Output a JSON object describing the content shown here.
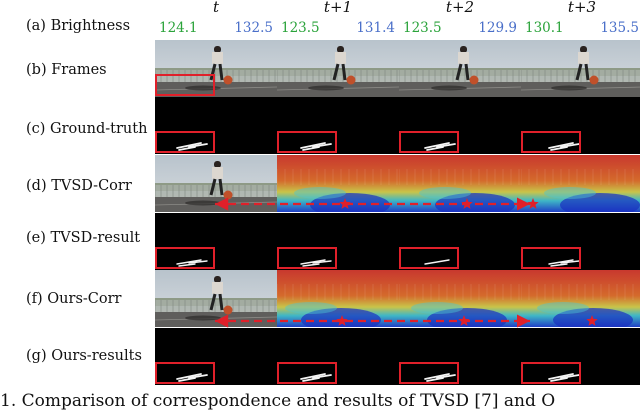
{
  "columns": [
    "t",
    "t+1",
    "t+2",
    "t+3"
  ],
  "rows": [
    {
      "label": "(a) Brightness"
    },
    {
      "label": "(b) Frames"
    },
    {
      "label": "(c) Ground-truth"
    },
    {
      "label": "(d) TVSD-Corr"
    },
    {
      "label": "(e) TVSD-result"
    },
    {
      "label": "(f) Ours-Corr"
    },
    {
      "label": "(g) Ours-results"
    }
  ],
  "brightness": [
    {
      "left": "124.1",
      "right": "132.5"
    },
    {
      "left": "123.5",
      "right": "131.4"
    },
    {
      "left": "123.5",
      "right": "129.9"
    },
    {
      "left": "130.1",
      "right": "135.5"
    }
  ],
  "colors": {
    "left_value": "#2aa33a",
    "right_value": "#4a6fc9",
    "highlight_box": "#e0202a",
    "correspondence_arrow": "#e0202a"
  },
  "caption": "1. Comparison of correspondence and results of TVSD [7] and O"
}
